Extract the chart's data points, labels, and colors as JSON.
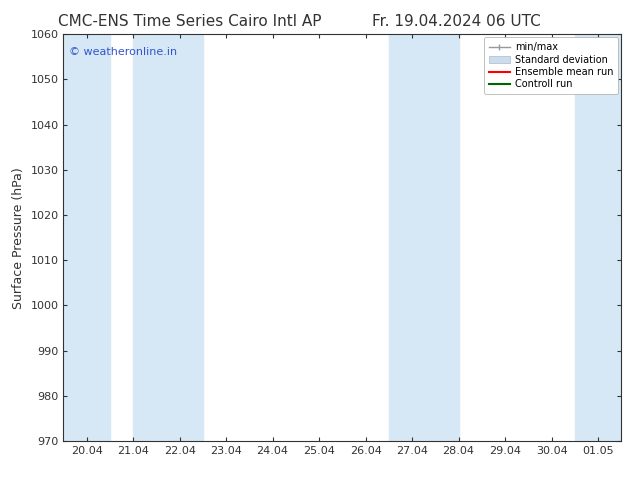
{
  "title": "CMC-ENS Time Series Cairo Intl AP",
  "title_right": "Fr. 19.04.2024 06 UTC",
  "ylabel": "Surface Pressure (hPa)",
  "ylim": [
    970,
    1060
  ],
  "yticks": [
    970,
    980,
    990,
    1000,
    1010,
    1020,
    1030,
    1040,
    1050,
    1060
  ],
  "xlabels": [
    "20.04",
    "21.04",
    "22.04",
    "23.04",
    "24.04",
    "25.04",
    "26.04",
    "27.04",
    "28.04",
    "29.04",
    "30.04",
    "01.05"
  ],
  "watermark": "© weatheronline.in",
  "watermark_color": "#3355cc",
  "background_color": "#ffffff",
  "plot_bg_color": "#ffffff",
  "shaded_band_color": "#d6e8f5",
  "legend_entries": [
    "min/max",
    "Standard deviation",
    "Ensemble mean run",
    "Controll run"
  ],
  "legend_colors_line": [
    "#999999",
    "#bbccdd",
    "#ff0000",
    "#006600"
  ],
  "tick_color": "#333333",
  "font_color": "#333333",
  "title_fontsize": 11,
  "tick_fontsize": 8,
  "ylabel_fontsize": 9,
  "shaded_xranges": [
    [
      -0.5,
      0.5
    ],
    [
      1.0,
      2.5
    ],
    [
      6.5,
      8.0
    ],
    [
      10.5,
      11.5
    ]
  ]
}
